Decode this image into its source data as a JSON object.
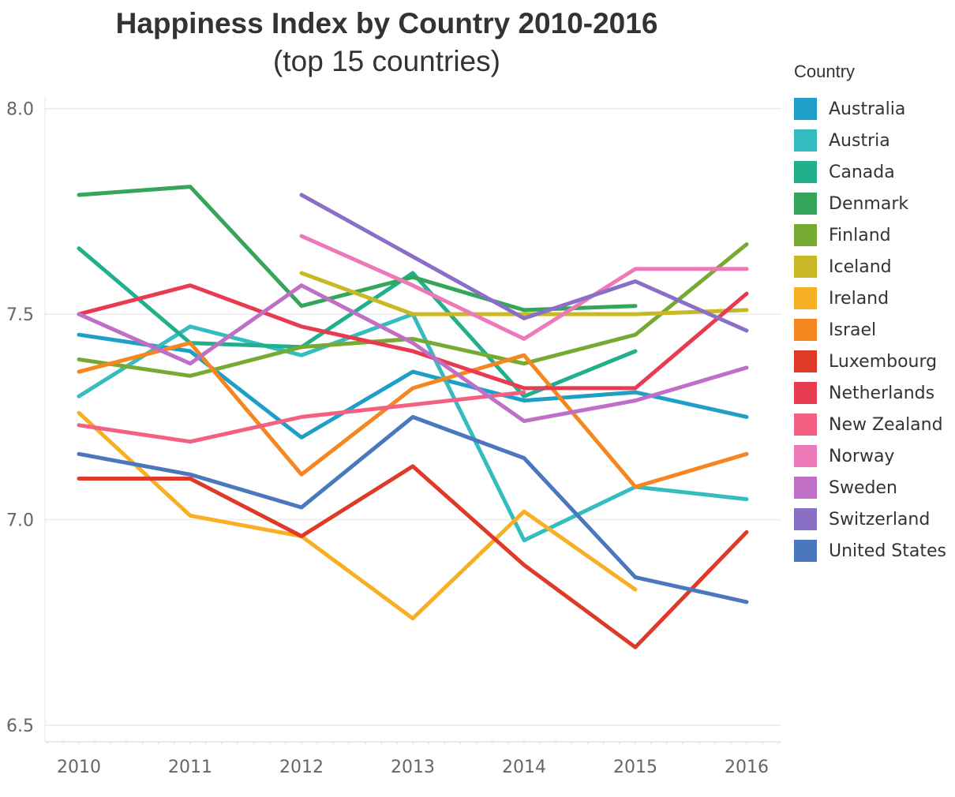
{
  "chart_data": {
    "type": "line",
    "title": "Happiness Index by Country 2010-2016",
    "subtitle": "(top 15 countries)",
    "xlabel": "",
    "ylabel": "",
    "x": [
      "2010",
      "2011",
      "2012",
      "2013",
      "2014",
      "2015",
      "2016"
    ],
    "ylim": [
      6.46,
      8.03
    ],
    "yticks": [
      "6.5",
      "7.0",
      "7.5",
      "8.0"
    ],
    "grid": true,
    "legend": {
      "title": "Country",
      "position": "right"
    },
    "series": [
      {
        "name": "Australia",
        "color": "#1f9fc8",
        "values": [
          7.45,
          7.41,
          7.2,
          7.36,
          7.29,
          7.31,
          7.25
        ]
      },
      {
        "name": "Austria",
        "color": "#34bcc0",
        "values": [
          7.3,
          7.47,
          7.4,
          7.5,
          6.95,
          7.08,
          7.05
        ]
      },
      {
        "name": "Canada",
        "color": "#22b08c",
        "values": [
          7.66,
          7.43,
          7.42,
          7.6,
          7.3,
          7.41,
          null
        ]
      },
      {
        "name": "Denmark",
        "color": "#35a55a",
        "values": [
          7.79,
          7.81,
          7.52,
          7.59,
          7.51,
          7.52,
          null
        ]
      },
      {
        "name": "Finland",
        "color": "#76aa33",
        "values": [
          7.39,
          7.35,
          7.42,
          7.44,
          7.38,
          7.45,
          7.67
        ]
      },
      {
        "name": "Iceland",
        "color": "#c9b825",
        "values": [
          null,
          null,
          7.6,
          7.5,
          7.5,
          7.5,
          7.51
        ]
      },
      {
        "name": "Ireland",
        "color": "#f7b025",
        "values": [
          7.26,
          7.01,
          6.96,
          6.76,
          7.02,
          6.83,
          null
        ]
      },
      {
        "name": "Israel",
        "color": "#f58620",
        "values": [
          7.36,
          7.43,
          7.11,
          7.32,
          7.4,
          7.08,
          7.16
        ]
      },
      {
        "name": "Luxembourg",
        "color": "#df3a27",
        "values": [
          7.1,
          7.1,
          6.96,
          7.13,
          6.89,
          6.69,
          6.97
        ]
      },
      {
        "name": "Netherlands",
        "color": "#e83a50",
        "values": [
          7.5,
          7.57,
          7.47,
          7.41,
          7.32,
          7.32,
          7.55
        ]
      },
      {
        "name": "New Zealand",
        "color": "#f56082",
        "values": [
          7.23,
          7.19,
          7.25,
          7.28,
          7.31,
          null,
          null
        ]
      },
      {
        "name": "Norway",
        "color": "#ee79b8",
        "values": [
          null,
          null,
          7.69,
          7.57,
          7.44,
          7.61,
          7.61
        ]
      },
      {
        "name": "Sweden",
        "color": "#bf6fc6",
        "values": [
          7.5,
          7.38,
          7.57,
          7.43,
          7.24,
          7.29,
          7.37
        ]
      },
      {
        "name": "Switzerland",
        "color": "#8a6fc6",
        "values": [
          null,
          null,
          7.79,
          7.64,
          7.49,
          7.58,
          7.46
        ]
      },
      {
        "name": "United States",
        "color": "#4a77bd",
        "values": [
          7.16,
          7.11,
          7.03,
          7.25,
          7.15,
          6.86,
          6.8
        ]
      }
    ]
  }
}
